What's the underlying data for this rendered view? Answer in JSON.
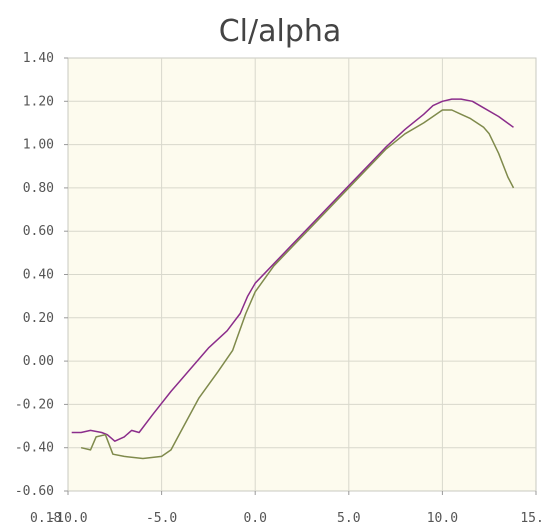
{
  "chart_data": {
    "type": "line",
    "title": "Cl/alpha",
    "xlabel": "",
    "ylabel": "",
    "xlim": [
      -10.0,
      15.0
    ],
    "ylim": [
      -0.6,
      1.4
    ],
    "grid": true,
    "x_ticks": [
      "-10.0",
      "-5.0",
      "0.0",
      "5.0",
      "10.0",
      "15.0"
    ],
    "x_tick_values": [
      -10,
      -5,
      0,
      5,
      10,
      15
    ],
    "y_ticks": [
      "1.40",
      "1.20",
      "1.00",
      "0.80",
      "0.60",
      "0.40",
      "0.20",
      "0.00",
      "-0.20",
      "-0.40",
      "-0.60"
    ],
    "y_tick_values": [
      1.4,
      1.2,
      1.0,
      0.8,
      0.6,
      0.4,
      0.2,
      0.0,
      -0.2,
      -0.4,
      -0.6
    ],
    "stray_label": "0.18",
    "series": [
      {
        "color": "#8b2d8b",
        "points": [
          [
            -9.8,
            -0.33
          ],
          [
            -9.3,
            -0.33
          ],
          [
            -8.8,
            -0.32
          ],
          [
            -8.2,
            -0.33
          ],
          [
            -7.9,
            -0.34
          ],
          [
            -7.5,
            -0.37
          ],
          [
            -7.0,
            -0.35
          ],
          [
            -6.6,
            -0.32
          ],
          [
            -6.2,
            -0.33
          ],
          [
            -5.5,
            -0.25
          ],
          [
            -4.5,
            -0.14
          ],
          [
            -3.5,
            -0.04
          ],
          [
            -2.5,
            0.06
          ],
          [
            -1.5,
            0.14
          ],
          [
            -0.8,
            0.22
          ],
          [
            -0.4,
            0.3
          ],
          [
            0.0,
            0.36
          ],
          [
            1.0,
            0.45
          ],
          [
            2.0,
            0.54
          ],
          [
            3.0,
            0.63
          ],
          [
            4.0,
            0.72
          ],
          [
            5.0,
            0.81
          ],
          [
            6.0,
            0.9
          ],
          [
            7.0,
            0.99
          ],
          [
            8.0,
            1.07
          ],
          [
            9.0,
            1.14
          ],
          [
            9.5,
            1.18
          ],
          [
            10.0,
            1.2
          ],
          [
            10.5,
            1.21
          ],
          [
            11.0,
            1.21
          ],
          [
            11.6,
            1.2
          ],
          [
            12.2,
            1.17
          ],
          [
            13.0,
            1.13
          ],
          [
            13.8,
            1.08
          ]
        ]
      },
      {
        "color": "#7f8a4c",
        "points": [
          [
            -9.3,
            -0.4
          ],
          [
            -8.8,
            -0.41
          ],
          [
            -8.5,
            -0.35
          ],
          [
            -8.0,
            -0.34
          ],
          [
            -7.6,
            -0.43
          ],
          [
            -7.0,
            -0.44
          ],
          [
            -6.0,
            -0.45
          ],
          [
            -5.0,
            -0.44
          ],
          [
            -4.5,
            -0.41
          ],
          [
            -4.0,
            -0.33
          ],
          [
            -3.0,
            -0.17
          ],
          [
            -2.0,
            -0.05
          ],
          [
            -1.2,
            0.05
          ],
          [
            -1.0,
            0.1
          ],
          [
            -0.5,
            0.22
          ],
          [
            0.0,
            0.32
          ],
          [
            1.0,
            0.44
          ],
          [
            2.0,
            0.53
          ],
          [
            3.0,
            0.62
          ],
          [
            4.0,
            0.71
          ],
          [
            5.0,
            0.8
          ],
          [
            6.0,
            0.89
          ],
          [
            7.0,
            0.98
          ],
          [
            8.0,
            1.05
          ],
          [
            9.0,
            1.1
          ],
          [
            9.5,
            1.13
          ],
          [
            10.0,
            1.16
          ],
          [
            10.5,
            1.16
          ],
          [
            11.0,
            1.14
          ],
          [
            11.5,
            1.12
          ],
          [
            12.2,
            1.08
          ],
          [
            12.5,
            1.05
          ],
          [
            13.0,
            0.96
          ],
          [
            13.5,
            0.85
          ],
          [
            13.8,
            0.8
          ]
        ]
      }
    ]
  }
}
